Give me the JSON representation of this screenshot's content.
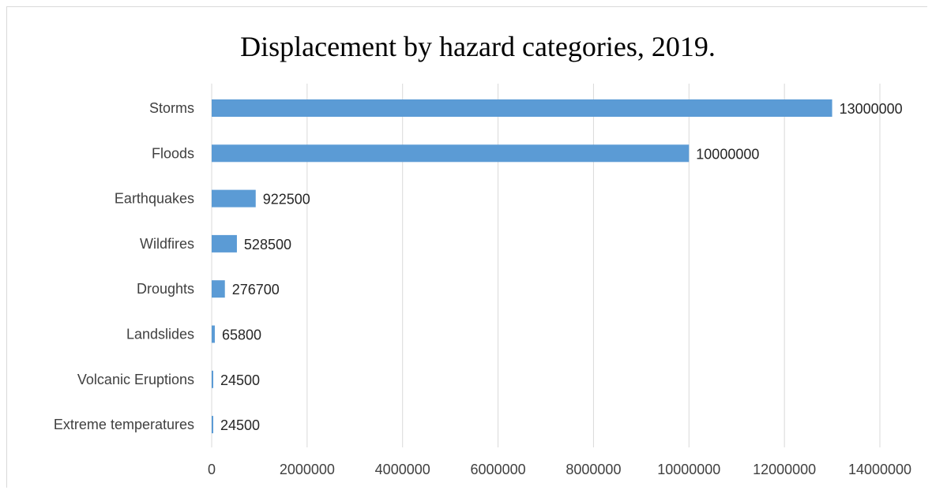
{
  "chart_data": {
    "type": "bar",
    "orientation": "horizontal",
    "title": "Displacement by hazard categories, 2019.",
    "categories": [
      "Storms",
      "Floods",
      "Earthquakes",
      "Wildfires",
      "Droughts",
      "Landslides",
      "Volcanic Eruptions",
      "Extreme temperatures"
    ],
    "values": [
      13000000,
      10000000,
      922500,
      528500,
      276700,
      65800,
      24500,
      24500
    ],
    "value_labels": [
      "13000000",
      "10000000",
      "922500",
      "528500",
      "276700",
      "65800",
      "24500",
      "24500"
    ],
    "xlim": [
      0,
      14000000
    ],
    "x_ticks": [
      0,
      2000000,
      4000000,
      6000000,
      8000000,
      10000000,
      12000000,
      14000000
    ],
    "x_tick_labels": [
      "0",
      "2000000",
      "4000000",
      "6000000",
      "8000000",
      "10000000",
      "12000000",
      "14000000"
    ],
    "grid": "vertical",
    "legend": "none",
    "bar_color": "#5b9bd5"
  }
}
